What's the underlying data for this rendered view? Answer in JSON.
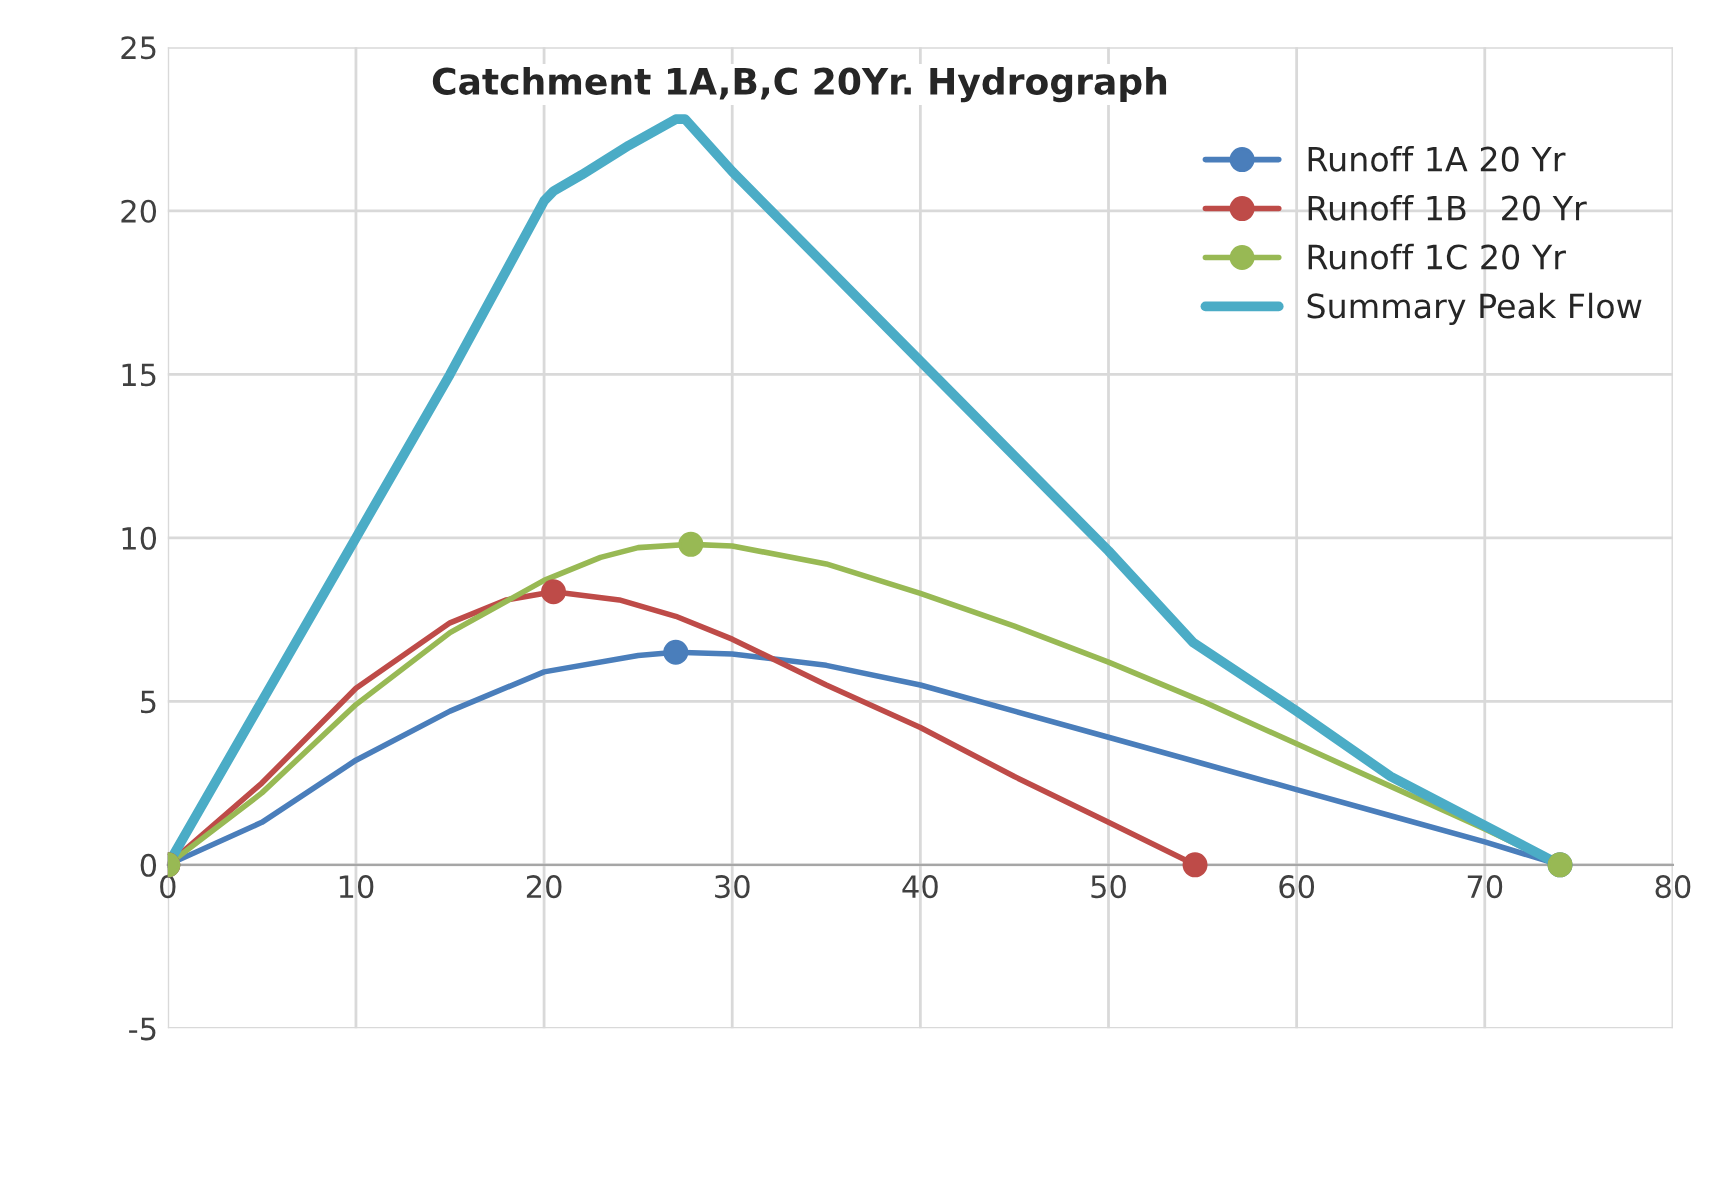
{
  "chart_data": {
    "type": "line",
    "title": "Catchment 1A,B,C 20Yr. Hydrograph",
    "series": [
      {
        "name": "Runoff 1A 20 Yr",
        "color": "#4a7ebb",
        "x": [
          0,
          5,
          10,
          15,
          20,
          25,
          27,
          30,
          35,
          40,
          45,
          50,
          55,
          60,
          65,
          70,
          74
        ],
        "values": [
          0,
          1.3,
          3.2,
          4.7,
          5.9,
          6.4,
          6.5,
          6.45,
          6.1,
          5.5,
          4.7,
          3.9,
          3.1,
          2.3,
          1.5,
          0.7,
          0
        ],
        "marker": "none"
      },
      {
        "name": "Runoff 1B   20 Yr",
        "color": "#be4b48",
        "x": [
          0,
          5,
          10,
          15,
          18,
          20.5,
          24,
          27,
          30,
          35,
          40,
          45,
          50,
          54.6
        ],
        "values": [
          0,
          2.5,
          5.4,
          7.4,
          8.1,
          8.35,
          8.1,
          7.6,
          6.9,
          5.5,
          4.2,
          2.7,
          1.3,
          0
        ],
        "marker": "none"
      },
      {
        "name": "Runoff 1C 20 Yr",
        "color": "#98b954",
        "x": [
          0,
          5,
          10,
          15,
          20,
          23,
          25,
          27.8,
          30,
          35,
          40,
          45,
          50,
          55,
          60,
          65,
          70,
          74
        ],
        "values": [
          0,
          2.2,
          4.9,
          7.1,
          8.7,
          9.4,
          9.7,
          9.8,
          9.75,
          9.2,
          8.3,
          7.3,
          6.2,
          5.0,
          3.7,
          2.4,
          1.1,
          0
        ],
        "marker": "none"
      },
      {
        "name": "Summary Peak Flow",
        "color": "#4bacc6",
        "x": [
          0,
          5,
          10,
          15,
          20,
          20.5,
          22,
          24.5,
          27,
          27.5,
          30,
          40,
          50,
          54.5,
          60,
          65,
          70,
          74
        ],
        "values": [
          0,
          5,
          10,
          15,
          20.3,
          20.6,
          21.1,
          22.0,
          22.8,
          22.8,
          21.2,
          15.4,
          9.6,
          6.8,
          4.7,
          2.7,
          1.2,
          0
        ],
        "marker": "none"
      },
      {
        "type": "scatter",
        "color": "#4a7ebb",
        "x": [
          0,
          27,
          74
        ],
        "values": [
          0,
          6.5,
          0
        ],
        "marker": "circle"
      },
      {
        "type": "scatter",
        "color": "#be4b48",
        "x": [
          0,
          20.5,
          54.6
        ],
        "values": [
          0,
          8.35,
          0
        ],
        "marker": "circle"
      },
      {
        "type": "scatter",
        "color": "#98b954",
        "x": [
          0,
          27.8,
          74
        ],
        "values": [
          0,
          9.8,
          0
        ],
        "marker": "circle"
      }
    ],
    "xlim": [
      0,
      80
    ],
    "xticks": [
      0,
      10,
      20,
      30,
      40,
      50,
      60,
      70,
      80
    ],
    "ylim": [
      -5,
      25
    ],
    "yticks": [
      -5,
      0,
      5,
      10,
      15,
      20,
      25
    ],
    "grid": true,
    "legend": "top right"
  }
}
